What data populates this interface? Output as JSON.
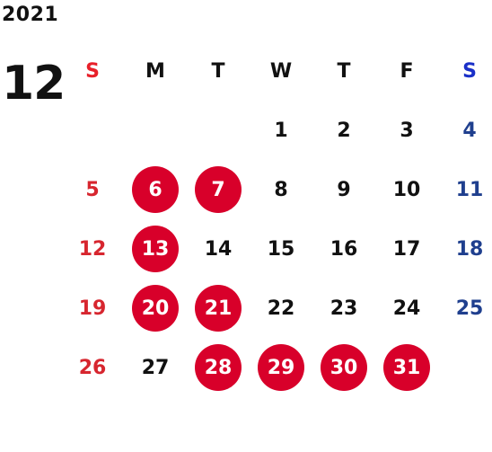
{
  "calendar": {
    "year": "2021",
    "month": "12",
    "weekdays": [
      "S",
      "M",
      "T",
      "W",
      "T",
      "F",
      "S"
    ],
    "weeks": [
      [
        {
          "day": "",
          "marked": false
        },
        {
          "day": "",
          "marked": false
        },
        {
          "day": "",
          "marked": false
        },
        {
          "day": "1",
          "marked": false
        },
        {
          "day": "2",
          "marked": false
        },
        {
          "day": "3",
          "marked": false
        },
        {
          "day": "4",
          "marked": false
        }
      ],
      [
        {
          "day": "5",
          "marked": false
        },
        {
          "day": "6",
          "marked": true
        },
        {
          "day": "7",
          "marked": true
        },
        {
          "day": "8",
          "marked": false
        },
        {
          "day": "9",
          "marked": false
        },
        {
          "day": "10",
          "marked": false
        },
        {
          "day": "11",
          "marked": false
        }
      ],
      [
        {
          "day": "12",
          "marked": false
        },
        {
          "day": "13",
          "marked": true
        },
        {
          "day": "14",
          "marked": false
        },
        {
          "day": "15",
          "marked": false
        },
        {
          "day": "16",
          "marked": false
        },
        {
          "day": "17",
          "marked": false
        },
        {
          "day": "18",
          "marked": false
        }
      ],
      [
        {
          "day": "19",
          "marked": false
        },
        {
          "day": "20",
          "marked": true
        },
        {
          "day": "21",
          "marked": true
        },
        {
          "day": "22",
          "marked": false
        },
        {
          "day": "23",
          "marked": false
        },
        {
          "day": "24",
          "marked": false
        },
        {
          "day": "25",
          "marked": false
        }
      ],
      [
        {
          "day": "26",
          "marked": false
        },
        {
          "day": "27",
          "marked": false
        },
        {
          "day": "28",
          "marked": true
        },
        {
          "day": "29",
          "marked": true
        },
        {
          "day": "30",
          "marked": true
        },
        {
          "day": "31",
          "marked": true
        },
        {
          "day": "",
          "marked": false
        }
      ]
    ]
  },
  "colors": {
    "sunday": "#d7262f",
    "saturday": "#1f3f8e",
    "marked_circle": "#d8002a",
    "text": "#111111"
  }
}
